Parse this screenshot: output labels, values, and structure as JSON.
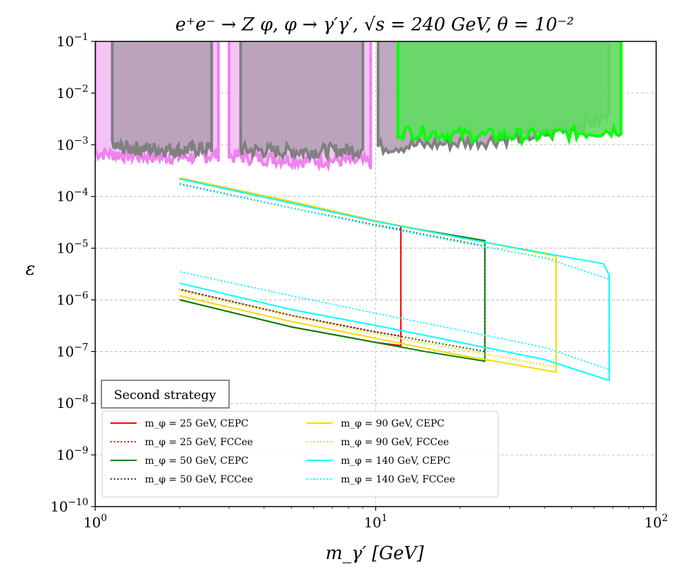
{
  "chart_data": {
    "type": "line",
    "title": "e⁺e⁻ → Z φ, φ → γ′γ′, √s = 240 GeV, θ = 10⁻²",
    "xlabel": "m_γ′ [GeV]",
    "ylabel": "ε",
    "xscale": "log",
    "yscale": "log",
    "xlim": [
      1,
      100
    ],
    "ylim": [
      1e-10,
      0.1
    ],
    "grid": true,
    "x_ticks": [
      {
        "value": 1,
        "base": "10",
        "exp": "0"
      },
      {
        "value": 10,
        "base": "10",
        "exp": "1"
      },
      {
        "value": 100,
        "base": "10",
        "exp": "2"
      }
    ],
    "y_ticks": [
      {
        "value": 1e-10,
        "base": "10",
        "exp": "−10"
      },
      {
        "value": 1e-09,
        "base": "10",
        "exp": "−9"
      },
      {
        "value": 1e-08,
        "base": "10",
        "exp": "−8"
      },
      {
        "value": 1e-07,
        "base": "10",
        "exp": "−7"
      },
      {
        "value": 1e-06,
        "base": "10",
        "exp": "−6"
      },
      {
        "value": 1e-05,
        "base": "10",
        "exp": "−5"
      },
      {
        "value": 0.0001,
        "base": "10",
        "exp": "−4"
      },
      {
        "value": 0.001,
        "base": "10",
        "exp": "−3"
      },
      {
        "value": 0.01,
        "base": "10",
        "exp": "−2"
      },
      {
        "value": 0.1,
        "base": "10",
        "exp": "−1"
      }
    ],
    "excluded_regions": [
      {
        "color": "#ee82ee",
        "fill": "#f5bdf5",
        "segments": [
          {
            "x_start": 1.0,
            "x_end": 2.75,
            "floor": [
              [
                1.0,
                0.0007
              ],
              [
                1.2,
                0.00065
              ],
              [
                1.5,
                0.0006
              ],
              [
                2.0,
                0.00058
              ],
              [
                2.5,
                0.0006
              ],
              [
                2.75,
                0.00065
              ]
            ]
          },
          {
            "x_start": 3.0,
            "x_end": 9.6,
            "floor": [
              [
                3.0,
                0.0006
              ],
              [
                4.0,
                0.00055
              ],
              [
                5.5,
                0.0005
              ],
              [
                7.0,
                0.0005
              ],
              [
                8.5,
                0.00048
              ],
              [
                9.6,
                0.00045
              ]
            ]
          }
        ]
      },
      {
        "color": "#808080",
        "fill": "#b5a0b5",
        "segments": [
          {
            "x_start": 1.15,
            "x_end": 2.6,
            "floor": [
              [
                1.15,
                0.0009
              ],
              [
                1.5,
                0.00085
              ],
              [
                2.0,
                0.0008
              ],
              [
                2.6,
                0.00085
              ]
            ]
          },
          {
            "x_start": 3.3,
            "x_end": 9.0,
            "floor": [
              [
                3.3,
                0.0008
              ],
              [
                4.5,
                0.00075
              ],
              [
                6.0,
                0.00075
              ],
              [
                7.5,
                0.00078
              ],
              [
                9.0,
                0.0008
              ]
            ]
          },
          {
            "x_start": 10.2,
            "x_end": 68,
            "floor": [
              [
                10.2,
                0.0009
              ],
              [
                15,
                0.001
              ],
              [
                25,
                0.0012
              ],
              [
                40,
                0.0016
              ],
              [
                55,
                0.0024
              ],
              [
                68,
                0.0035
              ]
            ]
          }
        ]
      },
      {
        "color": "#00ff00",
        "fill": "#5fdc5f",
        "segments": [
          {
            "x_start": 12.0,
            "x_end": 75,
            "floor": [
              [
                12.0,
                0.0018
              ],
              [
                18,
                0.0016
              ],
              [
                25,
                0.0015
              ],
              [
                40,
                0.0015
              ],
              [
                60,
                0.0018
              ],
              [
                75,
                0.002
              ]
            ]
          }
        ]
      }
    ],
    "series": [
      {
        "name": "m_φ = 25 GeV, CEPC",
        "color": "#ff0000",
        "style": "solid",
        "upper": [
          [
            2,
            0.00022
          ],
          [
            5,
            7.5e-05
          ],
          [
            10,
            3.3e-05
          ],
          [
            12.3,
            2.7e-05
          ]
        ],
        "lower": [
          [
            2,
            1e-06
          ],
          [
            5,
            3e-07
          ],
          [
            10,
            1.5e-07
          ],
          [
            12.3,
            1.3e-07
          ]
        ]
      },
      {
        "name": "m_φ = 25 GeV, FCCee",
        "color": "#ff0000",
        "style": "dotted",
        "upper": [
          [
            2,
            0.000175
          ],
          [
            5,
            6e-05
          ],
          [
            10,
            2.8e-05
          ],
          [
            12.3,
            2.3e-05
          ]
        ],
        "lower": [
          [
            2,
            1.6e-06
          ],
          [
            5,
            5e-07
          ],
          [
            10,
            2.4e-07
          ],
          [
            12.3,
            2e-07
          ]
        ]
      },
      {
        "name": "m_φ = 50 GeV, CEPC",
        "color": "#008000",
        "style": "solid",
        "upper": [
          [
            2,
            0.00022
          ],
          [
            5,
            7.5e-05
          ],
          [
            10,
            3.3e-05
          ],
          [
            15,
            2.2e-05
          ],
          [
            24.5,
            1.4e-05
          ]
        ],
        "lower": [
          [
            2,
            1e-06
          ],
          [
            5,
            3e-07
          ],
          [
            10,
            1.5e-07
          ],
          [
            15,
            1e-07
          ],
          [
            24.5,
            6.5e-08
          ]
        ]
      },
      {
        "name": "m_φ = 50 GeV, FCCee",
        "color": "#1a4d1a",
        "style": "dotted",
        "upper": [
          [
            2,
            0.000175
          ],
          [
            5,
            6e-05
          ],
          [
            10,
            2.8e-05
          ],
          [
            24.5,
            1.1e-05
          ]
        ],
        "lower": [
          [
            2,
            1.6e-06
          ],
          [
            5,
            5e-07
          ],
          [
            10,
            2.4e-07
          ],
          [
            24.5,
            1e-07
          ]
        ]
      },
      {
        "name": "m_φ = 90 GeV, CEPC",
        "color": "#ffd700",
        "style": "solid",
        "upper": [
          [
            2,
            0.00023
          ],
          [
            5,
            8e-05
          ],
          [
            10,
            3.4e-05
          ],
          [
            20,
            1.6e-05
          ],
          [
            44,
            7e-06
          ]
        ],
        "lower": [
          [
            2,
            1.2e-06
          ],
          [
            5,
            3.8e-07
          ],
          [
            10,
            1.8e-07
          ],
          [
            20,
            8.5e-08
          ],
          [
            44,
            4e-08
          ]
        ]
      },
      {
        "name": "m_φ = 90 GeV, FCCee",
        "color": "#ffd700",
        "style": "dotted",
        "upper": [
          [
            2,
            0.00017
          ],
          [
            5,
            6e-05
          ],
          [
            10,
            2.7e-05
          ],
          [
            20,
            1.3e-05
          ],
          [
            44,
            6e-06
          ]
        ],
        "lower": [
          [
            2,
            1.5e-06
          ],
          [
            5,
            4.8e-07
          ],
          [
            10,
            2.2e-07
          ],
          [
            20,
            1.1e-07
          ],
          [
            44,
            5e-08
          ]
        ]
      },
      {
        "name": "m_φ = 140 GeV, CEPC",
        "color": "#00ffff",
        "style": "solid",
        "upper": [
          [
            2,
            0.00022
          ],
          [
            5,
            7.5e-05
          ],
          [
            10,
            3.3e-05
          ],
          [
            20,
            1.6e-05
          ],
          [
            40,
            8e-06
          ],
          [
            65,
            5e-06
          ],
          [
            68,
            3e-06
          ]
        ],
        "lower": [
          [
            2,
            2.1e-06
          ],
          [
            5,
            6.5e-07
          ],
          [
            10,
            3.2e-07
          ],
          [
            20,
            1.5e-07
          ],
          [
            40,
            7e-08
          ],
          [
            65,
            3e-08
          ],
          [
            68,
            2.8e-08
          ]
        ]
      },
      {
        "name": "m_φ = 140 GeV, FCCee",
        "color": "#00ffff",
        "style": "dotted",
        "upper": [
          [
            2,
            0.00017
          ],
          [
            5,
            6e-05
          ],
          [
            10,
            2.7e-05
          ],
          [
            20,
            1.3e-05
          ],
          [
            40,
            6.5e-06
          ],
          [
            68,
            2.5e-06
          ]
        ],
        "lower": [
          [
            2,
            3.5e-06
          ],
          [
            5,
            1.2e-06
          ],
          [
            10,
            5.5e-07
          ],
          [
            20,
            2.6e-07
          ],
          [
            40,
            1.2e-07
          ],
          [
            68,
            4.5e-08
          ]
        ]
      }
    ],
    "legend": {
      "placement": "lower-left",
      "title": "Second strategy",
      "columns": 2
    }
  }
}
